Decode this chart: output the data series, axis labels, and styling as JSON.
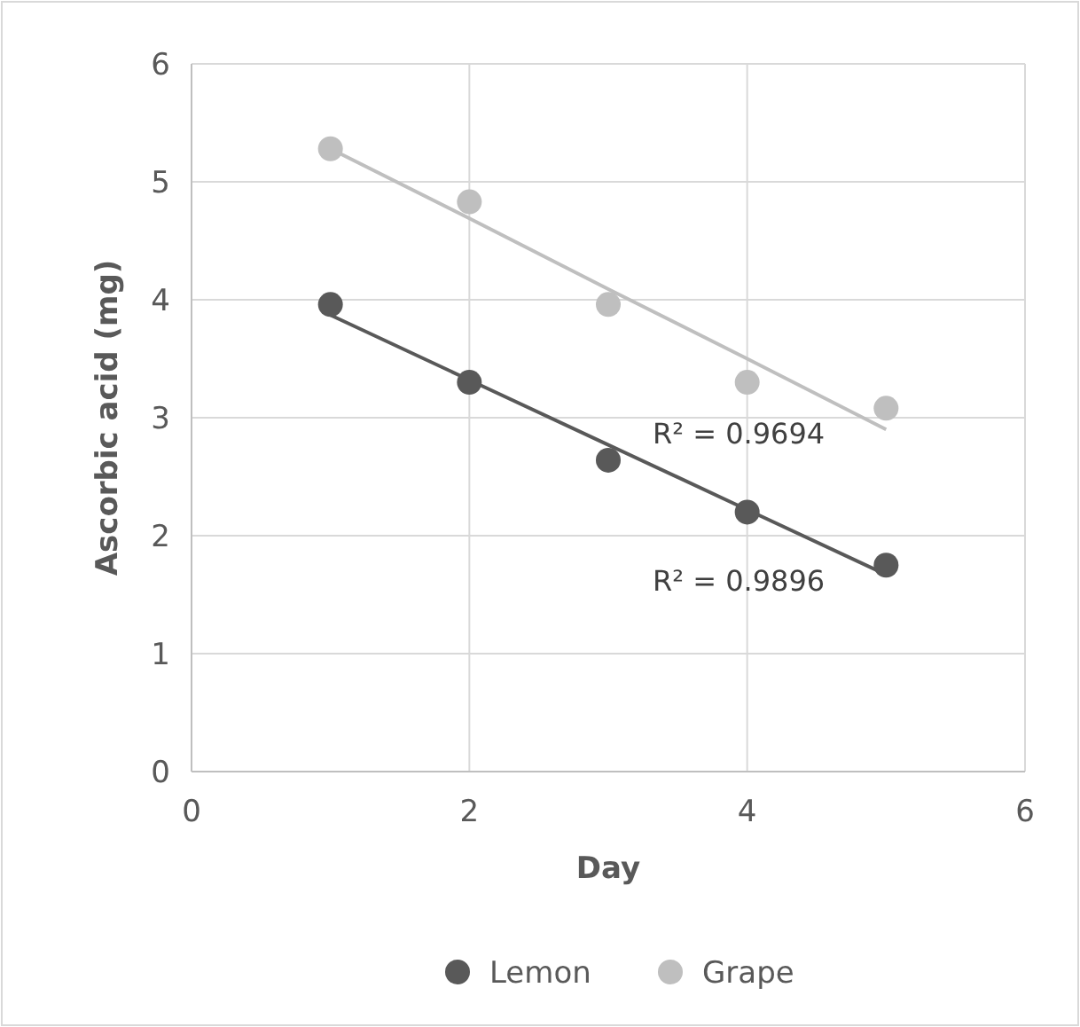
{
  "chart_data": {
    "type": "scatter",
    "xlabel": "Day",
    "ylabel": "Ascorbic acid (mg)",
    "xlim": [
      0,
      6
    ],
    "xticks": [
      0,
      2,
      4,
      6
    ],
    "ylim": [
      0,
      6
    ],
    "yticks": [
      0,
      1,
      2,
      3,
      4,
      5,
      6
    ],
    "grid": true,
    "legend": "bottom",
    "marker": "circle",
    "x": [
      1,
      2,
      3,
      4,
      5
    ],
    "series": [
      {
        "name": "Lemon",
        "color": "#595959",
        "values": [
          3.96,
          3.3,
          2.64,
          2.2,
          1.75
        ]
      },
      {
        "name": "Grape",
        "color": "#bfbfbf",
        "values": [
          5.28,
          4.83,
          3.96,
          3.3,
          3.08
        ]
      },
      {
        "type": "line",
        "marker": "none",
        "color": "#595959",
        "values": [
          3.87,
          3.32,
          2.77,
          2.22,
          1.67
        ]
      },
      {
        "type": "line",
        "marker": "none",
        "color": "#bfbfbf",
        "values": [
          5.28,
          4.69,
          4.09,
          3.5,
          2.9
        ]
      }
    ],
    "annotations": [
      "R² = 0.9694",
      "R² = 0.9896"
    ]
  }
}
